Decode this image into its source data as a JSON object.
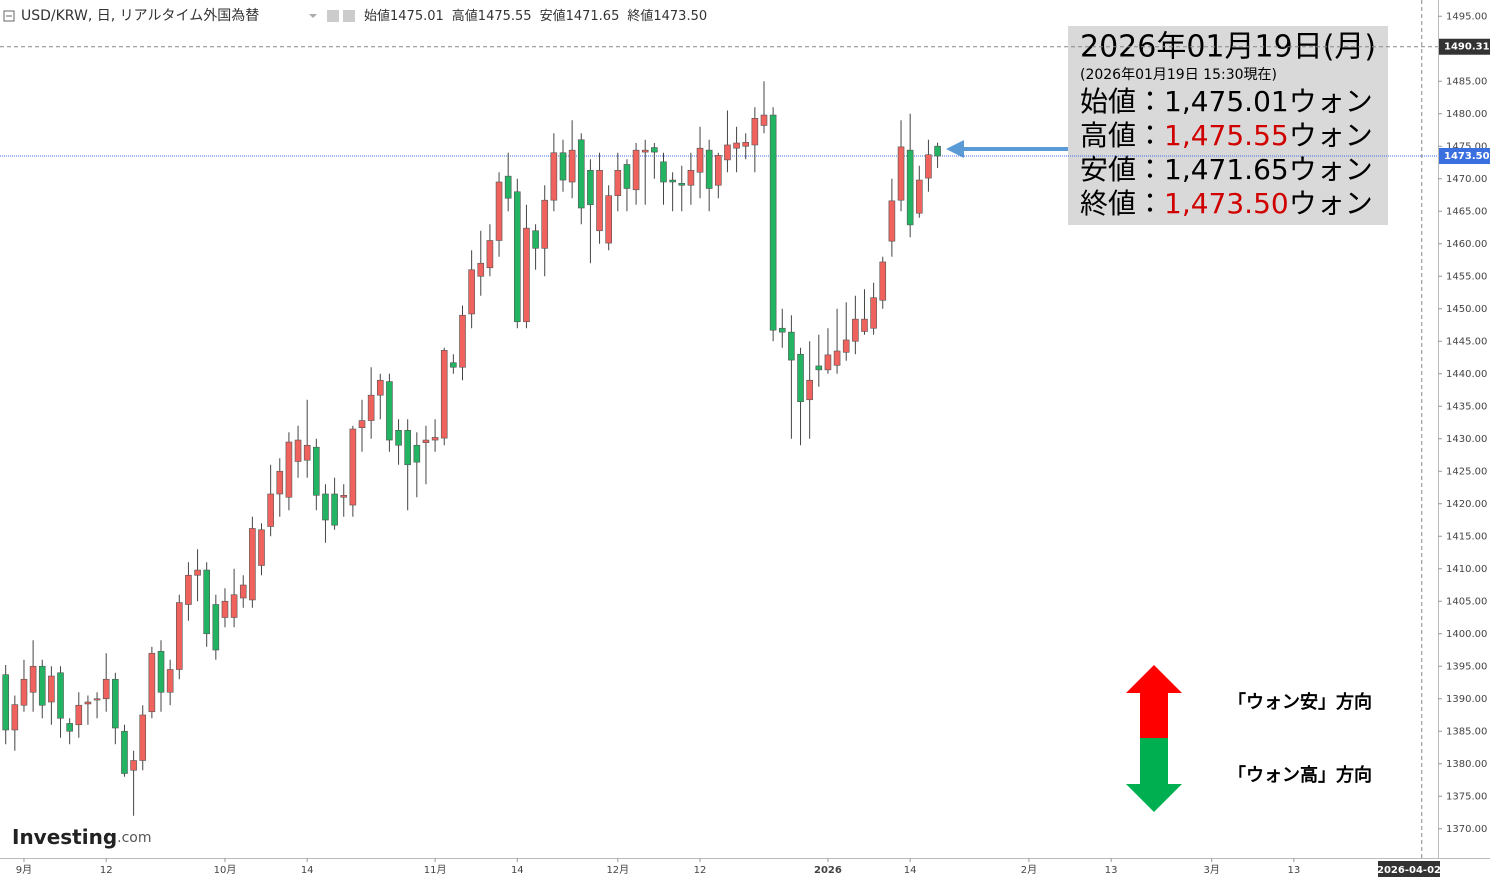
{
  "chart_data": {
    "type": "candlestick",
    "header": {
      "symbol": "USD/KRW, 日, リアルタイム外国為替",
      "fields": [
        {
          "label": "始値",
          "value": "1475.01"
        },
        {
          "label": "高値",
          "value": "1475.55"
        },
        {
          "label": "安値",
          "value": "1471.65"
        },
        {
          "label": "終値",
          "value": "1473.50"
        }
      ]
    },
    "annotation": {
      "title": "2026年01月19日(月)",
      "subtitle": "(2026年01月19日 15:30現在)",
      "rows": [
        {
          "label": "始値：",
          "value": "1,475.01",
          "unit": "ウォン",
          "color": "#000000"
        },
        {
          "label": "高値：",
          "value": "1,475.55",
          "unit": "ウォン",
          "color": "#d00000"
        },
        {
          "label": "安値：",
          "value": "1,471.65",
          "unit": "ウォン",
          "color": "#000000"
        },
        {
          "label": "終値：",
          "value": "1,473.50",
          "unit": "ウォン",
          "color": "#d00000"
        }
      ]
    },
    "direction_legend": [
      {
        "text": "「ウォン安」方向",
        "color": "#ff0000"
      },
      {
        "text": "「ウォン高」方向",
        "color": "#00b050"
      }
    ],
    "logo": {
      "name": "Investing",
      "suffix": ".com"
    },
    "up_color": "#f0625d",
    "down_color": "#22b463",
    "categories": [
      null,
      null,
      "9月",
      null,
      null,
      null,
      null,
      null,
      null,
      null,
      null,
      "12",
      null,
      null,
      null,
      null,
      null,
      null,
      null,
      null,
      null,
      null,
      null,
      null,
      "10月",
      null,
      null,
      null,
      null,
      null,
      null,
      null,
      null,
      "14",
      null,
      null,
      null,
      null,
      null,
      null,
      null,
      null,
      null,
      null,
      null,
      null,
      null,
      "11月",
      null,
      null,
      null,
      null,
      null,
      null,
      null,
      null,
      "14",
      null,
      null,
      null,
      null,
      null,
      null,
      null,
      null,
      null,
      null,
      "12月",
      null,
      null,
      null,
      null,
      null,
      null,
      null,
      null,
      "12",
      null,
      null,
      null,
      null,
      null,
      null,
      null,
      null,
      null,
      null,
      null,
      null,
      null,
      "2026",
      null,
      null,
      null,
      null,
      null,
      null,
      null,
      null,
      "14",
      null,
      null,
      null,
      null,
      null,
      null,
      null,
      null,
      null,
      null,
      null,
      null,
      "2月",
      null,
      null,
      null,
      null,
      null,
      null,
      null,
      null,
      "13",
      null,
      null,
      null,
      null,
      null,
      null,
      null,
      null,
      null,
      null,
      "3月",
      null,
      null,
      null,
      null,
      null,
      null,
      null,
      null,
      "13",
      null,
      null,
      null,
      null,
      null,
      null,
      null,
      null,
      null,
      null,
      null,
      null,
      null,
      "2026-04-02"
    ],
    "open": [
      1393.7,
      1385.2,
      1389,
      1391,
      1395,
      1389.5,
      1394,
      1386.2,
      1386,
      1389.2,
      1389.8,
      1390,
      1393,
      1385,
      1379,
      1380.5,
      1388,
      1397.3,
      1391,
      1394.5,
      1404.5,
      1409,
      1409.8,
      1404.5,
      1402.5,
      1402.5,
      1405.5,
      1405.2,
      1410.5,
      1416.5,
      1421.5,
      1421,
      1426.5,
      1426.7,
      1428.7,
      1421.5,
      1421.5,
      1421,
      1419.8,
      1431.7,
      1432.8,
      1436.7,
      1438.8,
      1431.3,
      1431.3,
      1429,
      1429.4,
      1429.8,
      1430.1,
      1441.7,
      1441,
      1449.2,
      1455,
      1456.3,
      1460.5,
      1470.4,
      1468,
      1448,
      1462,
      1459.3,
      1466.7,
      1474,
      1469.5,
      1476,
      1471.3,
      1462,
      1460.1,
      1467.4,
      1472.2,
      1468.3,
      1474.1,
      1474.8,
      1472.6,
      1469.8,
      1469.3,
      1469,
      1471,
      1474.4,
      1469,
      1472.9,
      1474.7,
      1475,
      1475.2,
      1478.2,
      1479.8,
      1447,
      1446.4,
      1443,
      1436,
      1441.2,
      1440.6,
      1441.3,
      1443.3,
      1445,
      1446.5,
      1447,
      1451.3,
      1460.4,
      1466.7,
      1474.4,
      1464.7,
      1470.1,
      1475.01,
      null,
      null,
      null,
      null,
      null,
      null,
      null,
      null,
      null,
      null,
      null,
      null,
      null,
      null,
      null,
      null,
      null,
      null,
      null,
      null,
      null,
      null,
      null,
      null,
      null,
      null,
      null,
      null,
      null,
      null,
      null,
      null,
      null,
      null,
      null,
      null,
      null,
      null,
      null,
      null,
      null,
      null,
      null,
      null,
      null,
      null,
      null,
      null,
      null,
      null,
      null,
      null,
      null
    ],
    "high": [
      1395.2,
      1390.5,
      1396,
      1399,
      1396,
      1395,
      1395,
      1387,
      1391,
      1390.5,
      1391,
      1397,
      1394,
      1386,
      1382,
      1389,
      1398,
      1399,
      1396,
      1406,
      1411,
      1413,
      1411,
      1406,
      1407,
      1410,
      1409,
      1418,
      1417,
      1426,
      1427,
      1431,
      1432,
      1436,
      1430,
      1423,
      1424,
      1423,
      1432,
      1436,
      1441,
      1440,
      1440,
      1433,
      1433,
      1431,
      1432,
      1433,
      1444,
      1443,
      1450.5,
      1459,
      1462,
      1463,
      1471,
      1474,
      1470,
      1466,
      1463,
      1469,
      1477,
      1476,
      1479,
      1477,
      1473,
      1474,
      1469,
      1474,
      1473,
      1475.5,
      1476,
      1475.5,
      1474,
      1471,
      1472,
      1474,
      1478,
      1476,
      1474,
      1480.5,
      1478,
      1477,
      1481,
      1485,
      1481,
      1450,
      1449,
      1444,
      1445,
      1446,
      1447,
      1450,
      1451,
      1452,
      1453,
      1454,
      1458,
      1470,
      1479,
      1480,
      1472,
      1476,
      1475.55,
      null,
      null,
      null,
      null,
      null,
      null,
      null,
      null,
      null,
      null,
      null,
      null,
      null,
      null,
      null,
      null,
      null,
      null,
      null,
      null,
      null,
      null,
      null,
      null,
      null,
      null,
      null,
      null,
      null,
      null,
      null,
      null,
      null,
      null,
      null,
      null,
      null,
      null,
      null,
      null,
      null,
      null,
      null,
      null,
      null,
      null,
      null,
      null,
      null,
      null,
      null,
      null,
      null
    ],
    "low": [
      1383,
      1382,
      1388,
      1388,
      1387,
      1386,
      1384,
      1383,
      1384,
      1386,
      1387,
      1388,
      1383,
      1378,
      1372,
      1379,
      1387,
      1388,
      1389,
      1393,
      1402,
      1405,
      1398,
      1396,
      1401,
      1401,
      1404,
      1404,
      1409,
      1415,
      1418,
      1419,
      1424,
      1424,
      1419,
      1414,
      1416,
      1418,
      1418,
      1428,
      1430,
      1433,
      1428,
      1426,
      1419,
      1421,
      1423,
      1428,
      1429,
      1440,
      1439,
      1447,
      1452,
      1455,
      1458,
      1465,
      1447,
      1447,
      1456,
      1455,
      1465,
      1468,
      1467,
      1463,
      1457,
      1460,
      1459,
      1465,
      1465,
      1466,
      1466,
      1470,
      1466,
      1465,
      1465,
      1466,
      1467,
      1465,
      1467,
      1471,
      1471,
      1473,
      1471,
      1477,
      1445,
      1444,
      1430,
      1429,
      1430,
      1438,
      1440,
      1440,
      1442,
      1443,
      1446,
      1446,
      1450,
      1458,
      1465,
      1461,
      1464,
      1468,
      1471.65,
      null,
      null,
      null,
      null,
      null,
      null,
      null,
      null,
      null,
      null,
      null,
      null,
      null,
      null,
      null,
      null,
      null,
      null,
      null,
      null,
      null,
      null,
      null,
      null,
      null,
      null,
      null,
      null,
      null,
      null,
      null,
      null,
      null,
      null,
      null,
      null,
      null,
      null,
      null,
      null,
      null,
      null,
      null,
      null,
      null,
      null,
      null,
      null,
      null,
      null,
      null,
      null,
      null
    ],
    "close": [
      1385.2,
      1389.1,
      1393,
      1395,
      1389,
      1393.5,
      1387,
      1385,
      1389,
      1389.5,
      1390,
      1393,
      1385.5,
      1378.5,
      1380.5,
      1387.5,
      1397,
      1391,
      1394.5,
      1404.8,
      1409,
      1409.8,
      1400,
      1397.5,
      1405,
      1406,
      1407.5,
      1416.2,
      1416,
      1421.5,
      1425,
      1429.5,
      1429.8,
      1429,
      1421.3,
      1417.5,
      1416.7,
      1421.3,
      1431.5,
      1432.8,
      1436.7,
      1439,
      1429.8,
      1429,
      1426,
      1426.4,
      1429.8,
      1430.2,
      1443.6,
      1441,
      1449,
      1456,
      1457,
      1460.5,
      1469.5,
      1467,
      1448,
      1462.4,
      1459.3,
      1466.7,
      1474,
      1469.8,
      1474.4,
      1465.5,
      1466,
      1471.3,
      1467.4,
      1471.3,
      1468.5,
      1474.4,
      1474.4,
      1474.1,
      1469.5,
      1469.5,
      1469,
      1471.3,
      1474.7,
      1468.5,
      1473.6,
      1475.2,
      1475.5,
      1475.6,
      1479.3,
      1479.8,
      1446.7,
      1446.4,
      1442.1,
      1435.7,
      1439,
      1440.6,
      1442.9,
      1443.5,
      1445.2,
      1448.4,
      1448.4,
      1451.7,
      1457.2,
      1466.6,
      1474.9,
      1462.9,
      1469.8,
      1473.7,
      1473.5,
      null,
      null,
      null,
      null,
      null,
      null,
      null,
      null,
      null,
      null,
      null,
      null,
      null,
      null,
      null,
      null,
      null,
      null,
      null,
      null,
      null,
      null,
      null,
      null,
      null,
      null,
      null,
      null,
      null,
      null,
      null,
      null,
      null,
      null,
      null,
      null,
      null,
      null,
      null,
      null,
      null,
      null,
      null,
      null,
      null,
      null,
      null,
      null,
      null,
      null,
      null,
      null,
      null
    ],
    "ylim": [
      1365.5,
      1497.5
    ],
    "yticks": [
      {
        "value": 1370,
        "label": "1370.00"
      },
      {
        "value": 1375,
        "label": "1375.00"
      },
      {
        "value": 1380,
        "label": "1380.00"
      },
      {
        "value": 1385,
        "label": "1385.00"
      },
      {
        "value": 1390,
        "label": "1390.00"
      },
      {
        "value": 1395,
        "label": "1395.00"
      },
      {
        "value": 1400,
        "label": "1400.00"
      },
      {
        "value": 1405,
        "label": "1405.00"
      },
      {
        "value": 1410,
        "label": "1410.00"
      },
      {
        "value": 1415,
        "label": "1415.00"
      },
      {
        "value": 1420,
        "label": "1420.00"
      },
      {
        "value": 1425,
        "label": "1425.00"
      },
      {
        "value": 1430,
        "label": "1430.00"
      },
      {
        "value": 1435,
        "label": "1435.00"
      },
      {
        "value": 1440,
        "label": "1440.00"
      },
      {
        "value": 1445,
        "label": "1445.00"
      },
      {
        "value": 1450,
        "label": "1450.00"
      },
      {
        "value": 1455,
        "label": "1455.00"
      },
      {
        "value": 1460,
        "label": "1460.00"
      },
      {
        "value": 1465,
        "label": "1465.00"
      },
      {
        "value": 1470,
        "label": "1470.00"
      },
      {
        "value": 1475,
        "label": "1475.00"
      },
      {
        "value": 1480,
        "label": "1480.00"
      },
      {
        "value": 1485,
        "label": "1485.00"
      },
      {
        "value": 1490,
        "label": "1490.00"
      },
      {
        "value": 1495,
        "label": "1495.00"
      }
    ],
    "last_price": {
      "value": 1473.5,
      "label": "1473.50",
      "color": "#3a6fe0"
    },
    "crosshair_y": 1490.31
  }
}
